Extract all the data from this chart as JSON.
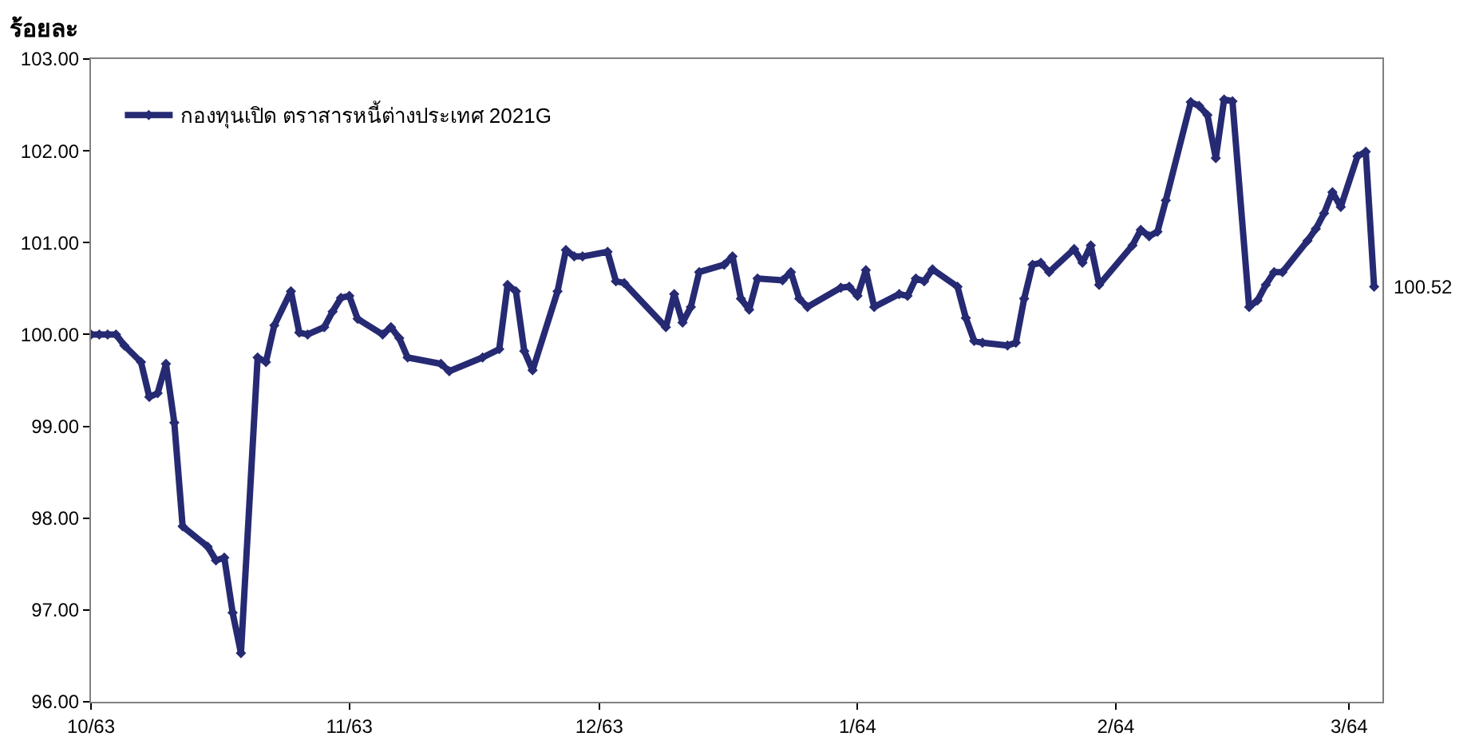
{
  "chart_data": {
    "type": "line",
    "ylabel": "ร้อยละ",
    "x": [
      "2020-10-01",
      "2020-10-02",
      "2020-10-03",
      "2020-10-04",
      "2020-10-05",
      "2020-10-07",
      "2020-10-08",
      "2020-10-09",
      "2020-10-10",
      "2020-10-11",
      "2020-10-12",
      "2020-10-15",
      "2020-10-16",
      "2020-10-17",
      "2020-10-18",
      "2020-10-19",
      "2020-10-21",
      "2020-10-22",
      "2020-10-23",
      "2020-10-25",
      "2020-10-26",
      "2020-10-27",
      "2020-10-29",
      "2020-10-30",
      "2020-10-31",
      "2020-11-01",
      "2020-11-02",
      "2020-11-05",
      "2020-11-06",
      "2020-11-07",
      "2020-11-08",
      "2020-11-12",
      "2020-11-13",
      "2020-11-17",
      "2020-11-19",
      "2020-11-20",
      "2020-11-21",
      "2020-11-22",
      "2020-11-23",
      "2020-11-26",
      "2020-11-27",
      "2020-11-28",
      "2020-11-29",
      "2020-12-02",
      "2020-12-03",
      "2020-12-04",
      "2020-12-09",
      "2020-12-10",
      "2020-12-11",
      "2020-12-12",
      "2020-12-13",
      "2020-12-16",
      "2020-12-17",
      "2020-12-18",
      "2020-12-19",
      "2020-12-20",
      "2020-12-23",
      "2020-12-24",
      "2020-12-25",
      "2020-12-26",
      "2020-12-30",
      "2020-12-31",
      "2021-01-01",
      "2021-01-02",
      "2021-01-03",
      "2021-01-06",
      "2021-01-07",
      "2021-01-08",
      "2021-01-09",
      "2021-01-10",
      "2021-01-13",
      "2021-01-14",
      "2021-01-15",
      "2021-01-16",
      "2021-01-19",
      "2021-01-20",
      "2021-01-21",
      "2021-01-22",
      "2021-01-23",
      "2021-01-24",
      "2021-01-27",
      "2021-01-28",
      "2021-01-29",
      "2021-01-30",
      "2021-02-03",
      "2021-02-04",
      "2021-02-05",
      "2021-02-06",
      "2021-02-07",
      "2021-02-10",
      "2021-02-11",
      "2021-02-12",
      "2021-02-13",
      "2021-02-14",
      "2021-02-15",
      "2021-02-17",
      "2021-02-18",
      "2021-02-19",
      "2021-02-20",
      "2021-02-21",
      "2021-02-24",
      "2021-02-25",
      "2021-02-26",
      "2021-02-27",
      "2021-02-28",
      "2021-03-02",
      "2021-03-03",
      "2021-03-04"
    ],
    "series": [
      {
        "name": "กองทุนเปิด ตราสารหนี้ต่างประเทศ 2021G",
        "color": "#262a73",
        "values": [
          100.0,
          100.0,
          100.0,
          100.0,
          99.88,
          99.7,
          99.32,
          99.36,
          99.68,
          99.04,
          97.91,
          97.69,
          97.54,
          97.57,
          96.97,
          96.53,
          99.75,
          99.7,
          100.1,
          100.47,
          100.02,
          100.0,
          100.08,
          100.25,
          100.4,
          100.42,
          100.17,
          100.0,
          100.08,
          99.96,
          99.75,
          99.68,
          99.6,
          99.75,
          99.84,
          100.54,
          100.47,
          99.82,
          99.61,
          100.47,
          100.92,
          100.85,
          100.85,
          100.9,
          100.58,
          100.56,
          100.08,
          100.44,
          100.13,
          100.3,
          100.68,
          100.76,
          100.85,
          100.39,
          100.27,
          100.61,
          100.59,
          100.68,
          100.39,
          100.3,
          100.51,
          100.52,
          100.42,
          100.7,
          100.3,
          100.44,
          100.42,
          100.61,
          100.58,
          100.71,
          100.52,
          100.18,
          99.93,
          99.91,
          99.88,
          99.91,
          100.39,
          100.76,
          100.78,
          100.68,
          100.93,
          100.78,
          100.97,
          100.54,
          100.97,
          101.14,
          101.07,
          101.12,
          101.46,
          102.53,
          102.49,
          102.39,
          101.92,
          102.56,
          102.54,
          100.3,
          100.37,
          100.54,
          100.68,
          100.68,
          101.02,
          101.15,
          101.32,
          101.55,
          101.39,
          101.94,
          101.99,
          100.52
        ]
      }
    ],
    "xlim": [
      "2020-10-01",
      "2021-03-05"
    ],
    "xticks": [
      {
        "value": "2020-10-01",
        "label": "10/63"
      },
      {
        "value": "2020-11-01",
        "label": "11/63"
      },
      {
        "value": "2020-12-01",
        "label": "12/63"
      },
      {
        "value": "2021-01-01",
        "label": "1/64"
      },
      {
        "value": "2021-02-01",
        "label": "2/64"
      },
      {
        "value": "2021-03-01",
        "label": "3/64"
      }
    ],
    "ylim": [
      96,
      103
    ],
    "yticks": [
      {
        "value": 96,
        "label": "96.00"
      },
      {
        "value": 97,
        "label": "97.00"
      },
      {
        "value": 98,
        "label": "98.00"
      },
      {
        "value": 99,
        "label": "99.00"
      },
      {
        "value": 100,
        "label": "100.00"
      },
      {
        "value": 101,
        "label": "101.00"
      },
      {
        "value": 102,
        "label": "102.00"
      },
      {
        "value": 103,
        "label": "103.00"
      }
    ],
    "annotations": [
      {
        "text": "100.52",
        "x": "2021-03-04",
        "y": 100.52
      }
    ],
    "legend": "top left",
    "marker": "diamond",
    "line_style": "solid"
  }
}
